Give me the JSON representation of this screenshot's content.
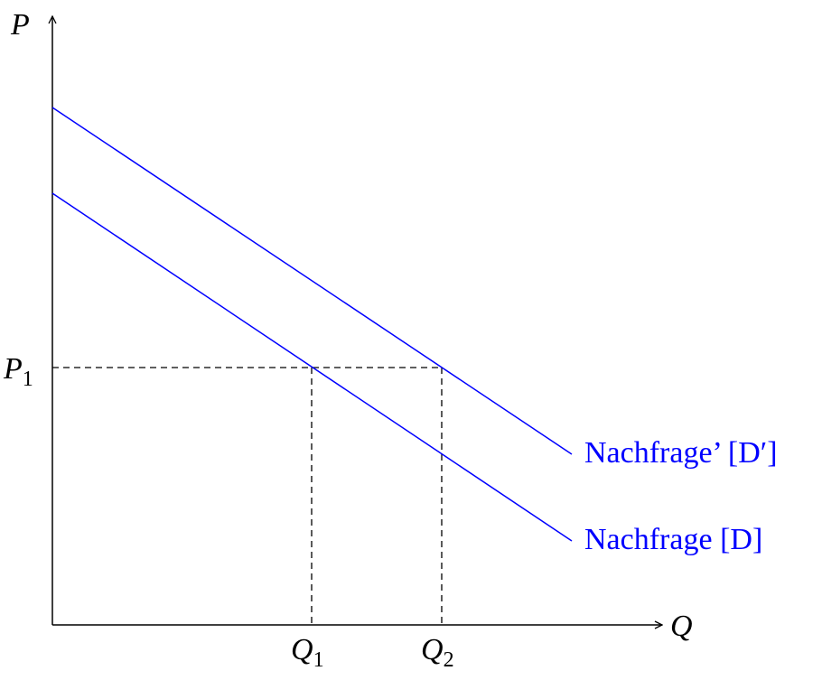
{
  "axes": {
    "y_label": "P",
    "x_label": "Q"
  },
  "price_label": {
    "base": "P",
    "sub": "1"
  },
  "quantity_labels": [
    {
      "base": "Q",
      "sub": "1"
    },
    {
      "base": "Q",
      "sub": "2"
    }
  ],
  "curves": [
    {
      "name": "Nachfrage’",
      "symbol": "[D′]",
      "color": "#0000ff"
    },
    {
      "name": "Nachfrage",
      "symbol": "[D]",
      "color": "#0000ff"
    }
  ]
}
